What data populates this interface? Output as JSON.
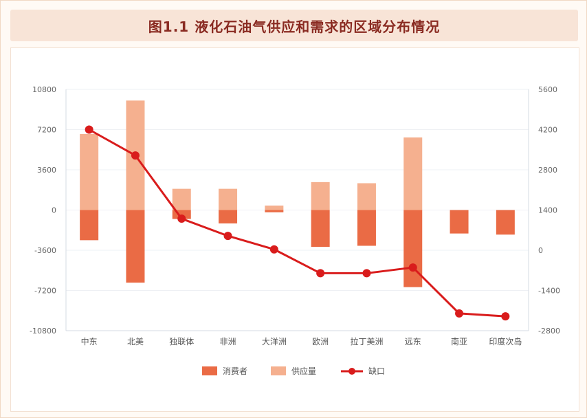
{
  "chart_data": {
    "type": "bar",
    "title": "图1.1 液化石油气供应和需求的区域分布情况",
    "categories": [
      "中东",
      "北美",
      "独联体",
      "非洲",
      "大洋洲",
      "欧洲",
      "拉丁美洲",
      "远东",
      "南亚",
      "印度次岛"
    ],
    "series": [
      {
        "name": "消费者",
        "type": "bar",
        "axis": "left",
        "values": [
          -2700,
          -6500,
          -800,
          -1200,
          -200,
          -3300,
          -3200,
          -6900,
          -2100,
          -2200
        ]
      },
      {
        "name": "供应量",
        "type": "bar",
        "axis": "left",
        "values": [
          6800,
          9800,
          1900,
          1900,
          400,
          2500,
          2400,
          6500,
          0,
          0
        ]
      },
      {
        "name": "缺口",
        "type": "line",
        "axis": "right",
        "values": [
          4200,
          3300,
          1100,
          500,
          30,
          -800,
          -800,
          -600,
          -2200,
          -2300
        ]
      }
    ],
    "ylim_left": [
      -10800,
      10800
    ],
    "yticks_left": [
      "10800",
      "7200",
      "3600",
      "0",
      "-3600",
      "-7200",
      "-10800"
    ],
    "ylim_right": [
      -2800,
      5600
    ],
    "yticks_right": [
      "5600",
      "4200",
      "2800",
      "1400",
      "0",
      "-1400",
      "-2800"
    ],
    "grid": true,
    "legend_position": "bottom",
    "colors": {
      "consumer": "#ea6b45",
      "supply": "#f5b08f",
      "gap": "#d91c1c"
    }
  }
}
